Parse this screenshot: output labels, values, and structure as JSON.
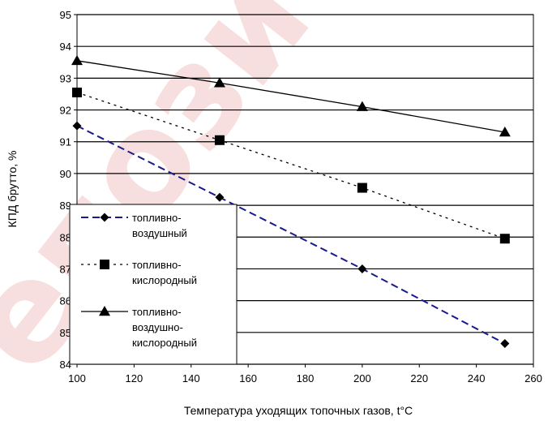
{
  "chart_data": {
    "type": "line",
    "xlabel": "Температура уходящих топочных газов, t°C",
    "ylabel": "КПД брутто, %",
    "xlim": [
      100,
      260
    ],
    "ylim": [
      84,
      95
    ],
    "xticks": [
      "100",
      "120",
      "140",
      "160",
      "180",
      "200",
      "220",
      "240",
      "260"
    ],
    "yticks": [
      "84",
      "85",
      "86",
      "87",
      "88",
      "89",
      "90",
      "91",
      "92",
      "93",
      "94",
      "95"
    ],
    "grid": "horizontal",
    "legend_position": "bottom-left",
    "series": [
      {
        "name_lines": [
          "топливно-",
          "воздушный"
        ],
        "marker": "diamond",
        "line_style": "dashed",
        "color": "#1a1a8c",
        "x": [
          100,
          150,
          200,
          250
        ],
        "y": [
          91.5,
          89.25,
          87.0,
          84.65
        ]
      },
      {
        "name_lines": [
          "топливно-",
          "кислородный"
        ],
        "marker": "square",
        "line_style": "dotted",
        "color": "#000000",
        "x": [
          100,
          150,
          200,
          250
        ],
        "y": [
          92.55,
          91.05,
          89.55,
          87.95
        ]
      },
      {
        "name_lines": [
          "топливно-",
          "воздушно-",
          "кислородный"
        ],
        "marker": "triangle",
        "line_style": "solid",
        "color": "#000000",
        "x": [
          100,
          150,
          200,
          250
        ],
        "y": [
          93.55,
          92.85,
          92.1,
          91.3
        ]
      }
    ]
  },
  "watermark": {
    "text": "епозитор",
    "color": "#f2c4c4"
  }
}
